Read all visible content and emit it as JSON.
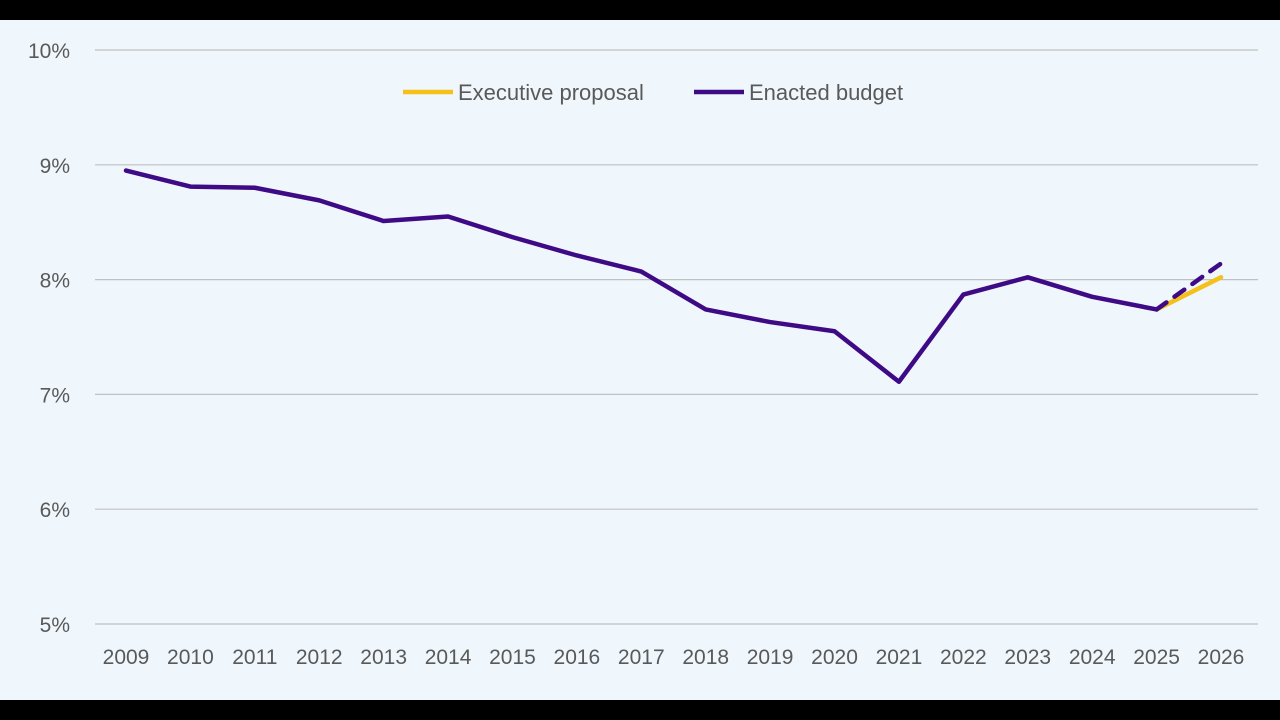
{
  "chart_data": {
    "type": "line",
    "title": "",
    "xlabel": "",
    "ylabel": "",
    "x": [
      2009,
      2010,
      2011,
      2012,
      2013,
      2014,
      2015,
      2016,
      2017,
      2018,
      2019,
      2020,
      2021,
      2022,
      2023,
      2024,
      2025,
      2026
    ],
    "y_ticks": [
      "5%",
      "6%",
      "7%",
      "8%",
      "9%",
      "10%"
    ],
    "ylim": [
      5,
      10
    ],
    "grid": true,
    "legend_position": "top",
    "series": [
      {
        "name": "Executive proposal",
        "color": "#f5c01a",
        "style": "solid",
        "points": [
          [
            2025,
            7.74
          ],
          [
            2026,
            8.02
          ]
        ]
      },
      {
        "name": "Enacted budget",
        "color": "#3f0a85",
        "style": "solid",
        "points": [
          [
            2009,
            8.95
          ],
          [
            2010,
            8.81
          ],
          [
            2011,
            8.8
          ],
          [
            2012,
            8.69
          ],
          [
            2013,
            8.51
          ],
          [
            2014,
            8.55
          ],
          [
            2015,
            8.37
          ],
          [
            2016,
            8.21
          ],
          [
            2017,
            8.07
          ],
          [
            2018,
            7.74
          ],
          [
            2019,
            7.63
          ],
          [
            2020,
            7.55
          ],
          [
            2021,
            7.11
          ],
          [
            2022,
            7.87
          ],
          [
            2023,
            8.02
          ],
          [
            2024,
            7.85
          ],
          [
            2025,
            7.74
          ]
        ],
        "projection": {
          "style": "dashed",
          "points": [
            [
              2025,
              7.74
            ],
            [
              2026,
              8.14
            ]
          ]
        }
      }
    ]
  }
}
